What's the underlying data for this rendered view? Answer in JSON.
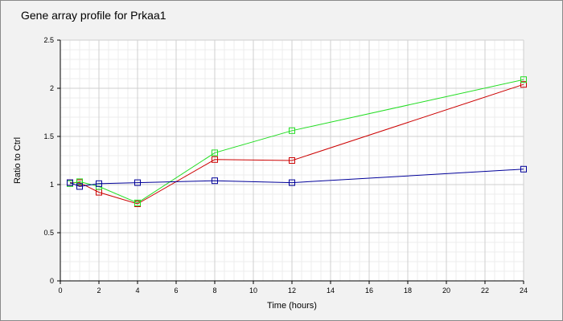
{
  "chart_data": {
    "type": "line",
    "title": "Gene array profile for Prkaa1",
    "xlabel": "Time (hours)",
    "ylabel": "Ratio to Ctrl",
    "xlim": [
      0,
      24
    ],
    "ylim": [
      0,
      2.5
    ],
    "xticks": [
      0,
      2,
      4,
      6,
      8,
      10,
      12,
      14,
      16,
      18,
      20,
      22,
      24
    ],
    "yticks": [
      0,
      0.5,
      1,
      1.5,
      2,
      2.5
    ],
    "xtick_labels": [
      "0",
      "2",
      "4",
      "6",
      "8",
      "10",
      "12",
      "14",
      "16",
      "18",
      "20",
      "22",
      "24"
    ],
    "ytick_labels": [
      "0",
      "0.5",
      "1",
      "1.5",
      "2",
      "2.5"
    ],
    "grid": true,
    "minor_grid": true,
    "legend": "none",
    "series": [
      {
        "color": "#cc0000",
        "marker": "square",
        "points": [
          [
            0.5,
            1.02
          ],
          [
            1,
            1.02
          ],
          [
            2,
            0.92
          ],
          [
            4,
            0.8
          ],
          [
            8,
            1.26
          ],
          [
            12,
            1.25
          ],
          [
            24,
            2.04
          ]
        ]
      },
      {
        "color": "#22dd22",
        "marker": "square",
        "points": [
          [
            0.5,
            1.01
          ],
          [
            1,
            1.03
          ],
          [
            2,
            0.98
          ],
          [
            4,
            0.81
          ],
          [
            8,
            1.33
          ],
          [
            12,
            1.56
          ],
          [
            24,
            2.09
          ]
        ]
      },
      {
        "color": "#000099",
        "marker": "square",
        "points": [
          [
            0.5,
            1.02
          ],
          [
            1,
            0.98
          ],
          [
            2,
            1.01
          ],
          [
            4,
            1.02
          ],
          [
            8,
            1.04
          ],
          [
            12,
            1.02
          ],
          [
            24,
            1.16
          ]
        ]
      }
    ]
  }
}
